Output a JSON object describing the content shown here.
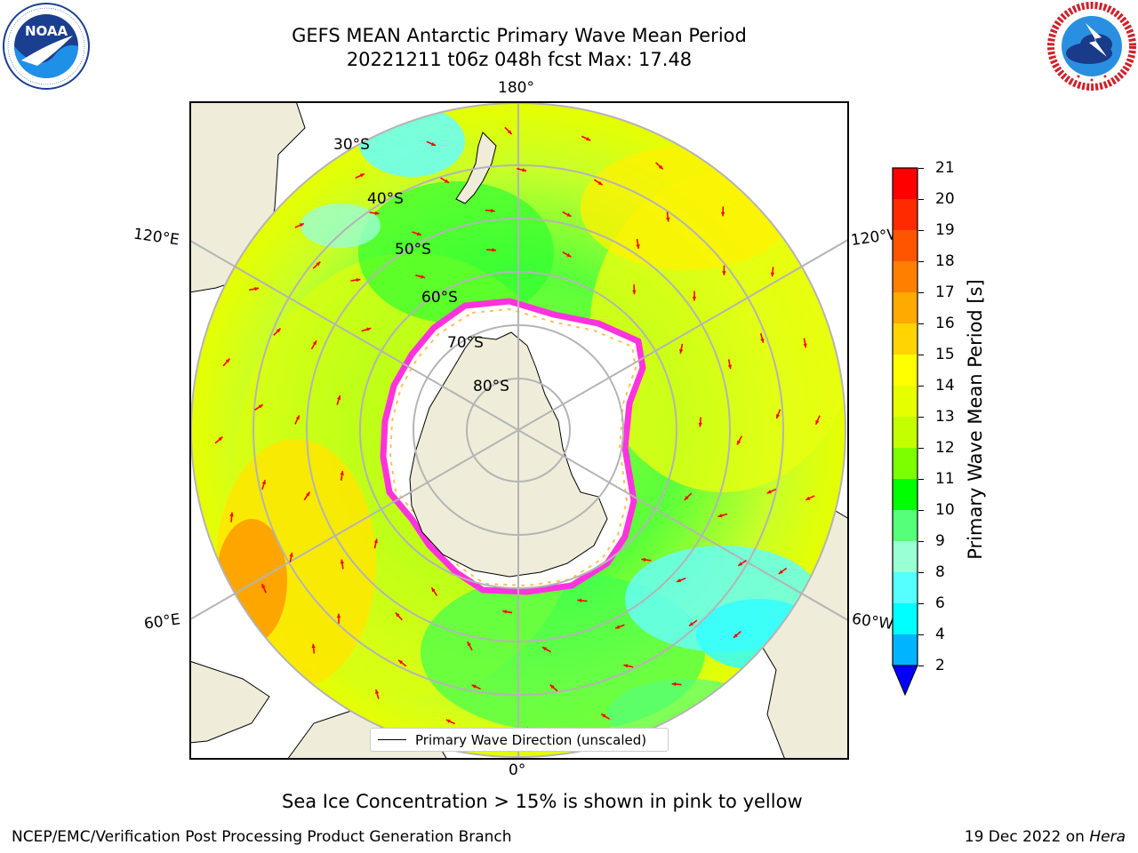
{
  "header": {
    "title_line1": "GEFS MEAN Antarctic Primary Wave Mean Period",
    "title_line2": "20221211 t06z 048h fcst   Max: 17.48"
  },
  "logos": {
    "left": {
      "name": "NOAA",
      "text": "NOAA",
      "ring_text": "NATIONAL OCEANIC AND ATMOSPHERIC ADMINISTRATION · U.S. DEPARTMENT OF COMMERCE"
    },
    "right": {
      "name": "NATIONAL WEATHER SERVICE",
      "ring_text": "NATIONAL WEATHER SERVICE"
    }
  },
  "map": {
    "projection": "south-polar stereographic",
    "longitude_labels": {
      "top": "180°",
      "bottom": "0°",
      "left_upper": "120°E",
      "left_lower": "60°E",
      "right_upper": "120°W",
      "right_lower": "60°W"
    },
    "latitude_labels": [
      "30°S",
      "40°S",
      "50°S",
      "60°S",
      "70°S",
      "80°S"
    ],
    "legend_label": "Primary Wave Direction (unscaled)",
    "colors": {
      "land": "#efedd9",
      "ice": "#ffffff",
      "ice_edge": "#ff33dd",
      "arrows": "#ff0000",
      "grid": "#b4b4b4"
    }
  },
  "colorbar": {
    "label": "Primary Wave Mean Period [s]",
    "ticks": [
      "21",
      "20",
      "19",
      "18",
      "17",
      "16",
      "15",
      "14",
      "13",
      "12",
      "11",
      "10",
      "9",
      "8",
      "6",
      "4",
      "2"
    ],
    "bins_top_to_bottom": [
      "#ff0000",
      "#ff2a00",
      "#ff5500",
      "#ff8000",
      "#ffaa00",
      "#ffd400",
      "#ffff00",
      "#e6ff00",
      "#c4ff00",
      "#7dff00",
      "#00ff00",
      "#55ff7a",
      "#99ffd4",
      "#55ffff",
      "#00ffff",
      "#00b4ff"
    ],
    "extend_color": "#0000ff"
  },
  "caption": "Sea Ice Concentration > 15% is shown in pink to yellow",
  "footer": {
    "left": "NCEP/EMC/Verification Post Processing Product Generation Branch",
    "right_prefix": "19 Dec 2022 on ",
    "right_host": "Hera"
  }
}
